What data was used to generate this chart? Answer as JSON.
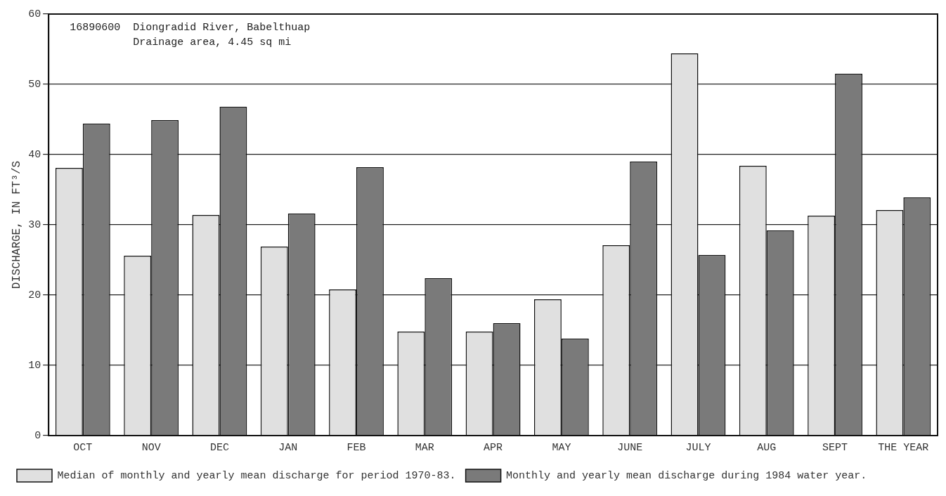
{
  "chart_data": {
    "type": "bar",
    "title": "16890600  Diongradid River, Babelthuap",
    "subtitle": "Drainage area, 4.45 sq mi",
    "ylabel": "DISCHARGE, IN FT³/S",
    "categories": [
      "OCT",
      "NOV",
      "DEC",
      "JAN",
      "FEB",
      "MAR",
      "APR",
      "MAY",
      "JUNE",
      "JULY",
      "AUG",
      "SEPT",
      "THE YEAR"
    ],
    "series": [
      {
        "name": "Median of monthly and yearly mean discharge for period 1970-83.",
        "color": "#e0e0e0",
        "values": [
          38.1,
          25.6,
          31.4,
          26.9,
          20.8,
          14.8,
          14.8,
          19.4,
          27.1,
          54.4,
          38.4,
          31.3,
          32.1
        ]
      },
      {
        "name": "Monthly and yearly mean discharge during 1984 water year.",
        "color": "#7a7a7a",
        "values": [
          44.4,
          44.9,
          46.8,
          31.6,
          38.2,
          22.4,
          16.0,
          13.8,
          39.0,
          25.7,
          29.2,
          51.5,
          33.9
        ]
      }
    ],
    "ylim": [
      0,
      60
    ],
    "yticks": [
      0,
      10,
      20,
      30,
      40,
      50,
      60
    ],
    "grid": "y",
    "legend": "bottom"
  }
}
